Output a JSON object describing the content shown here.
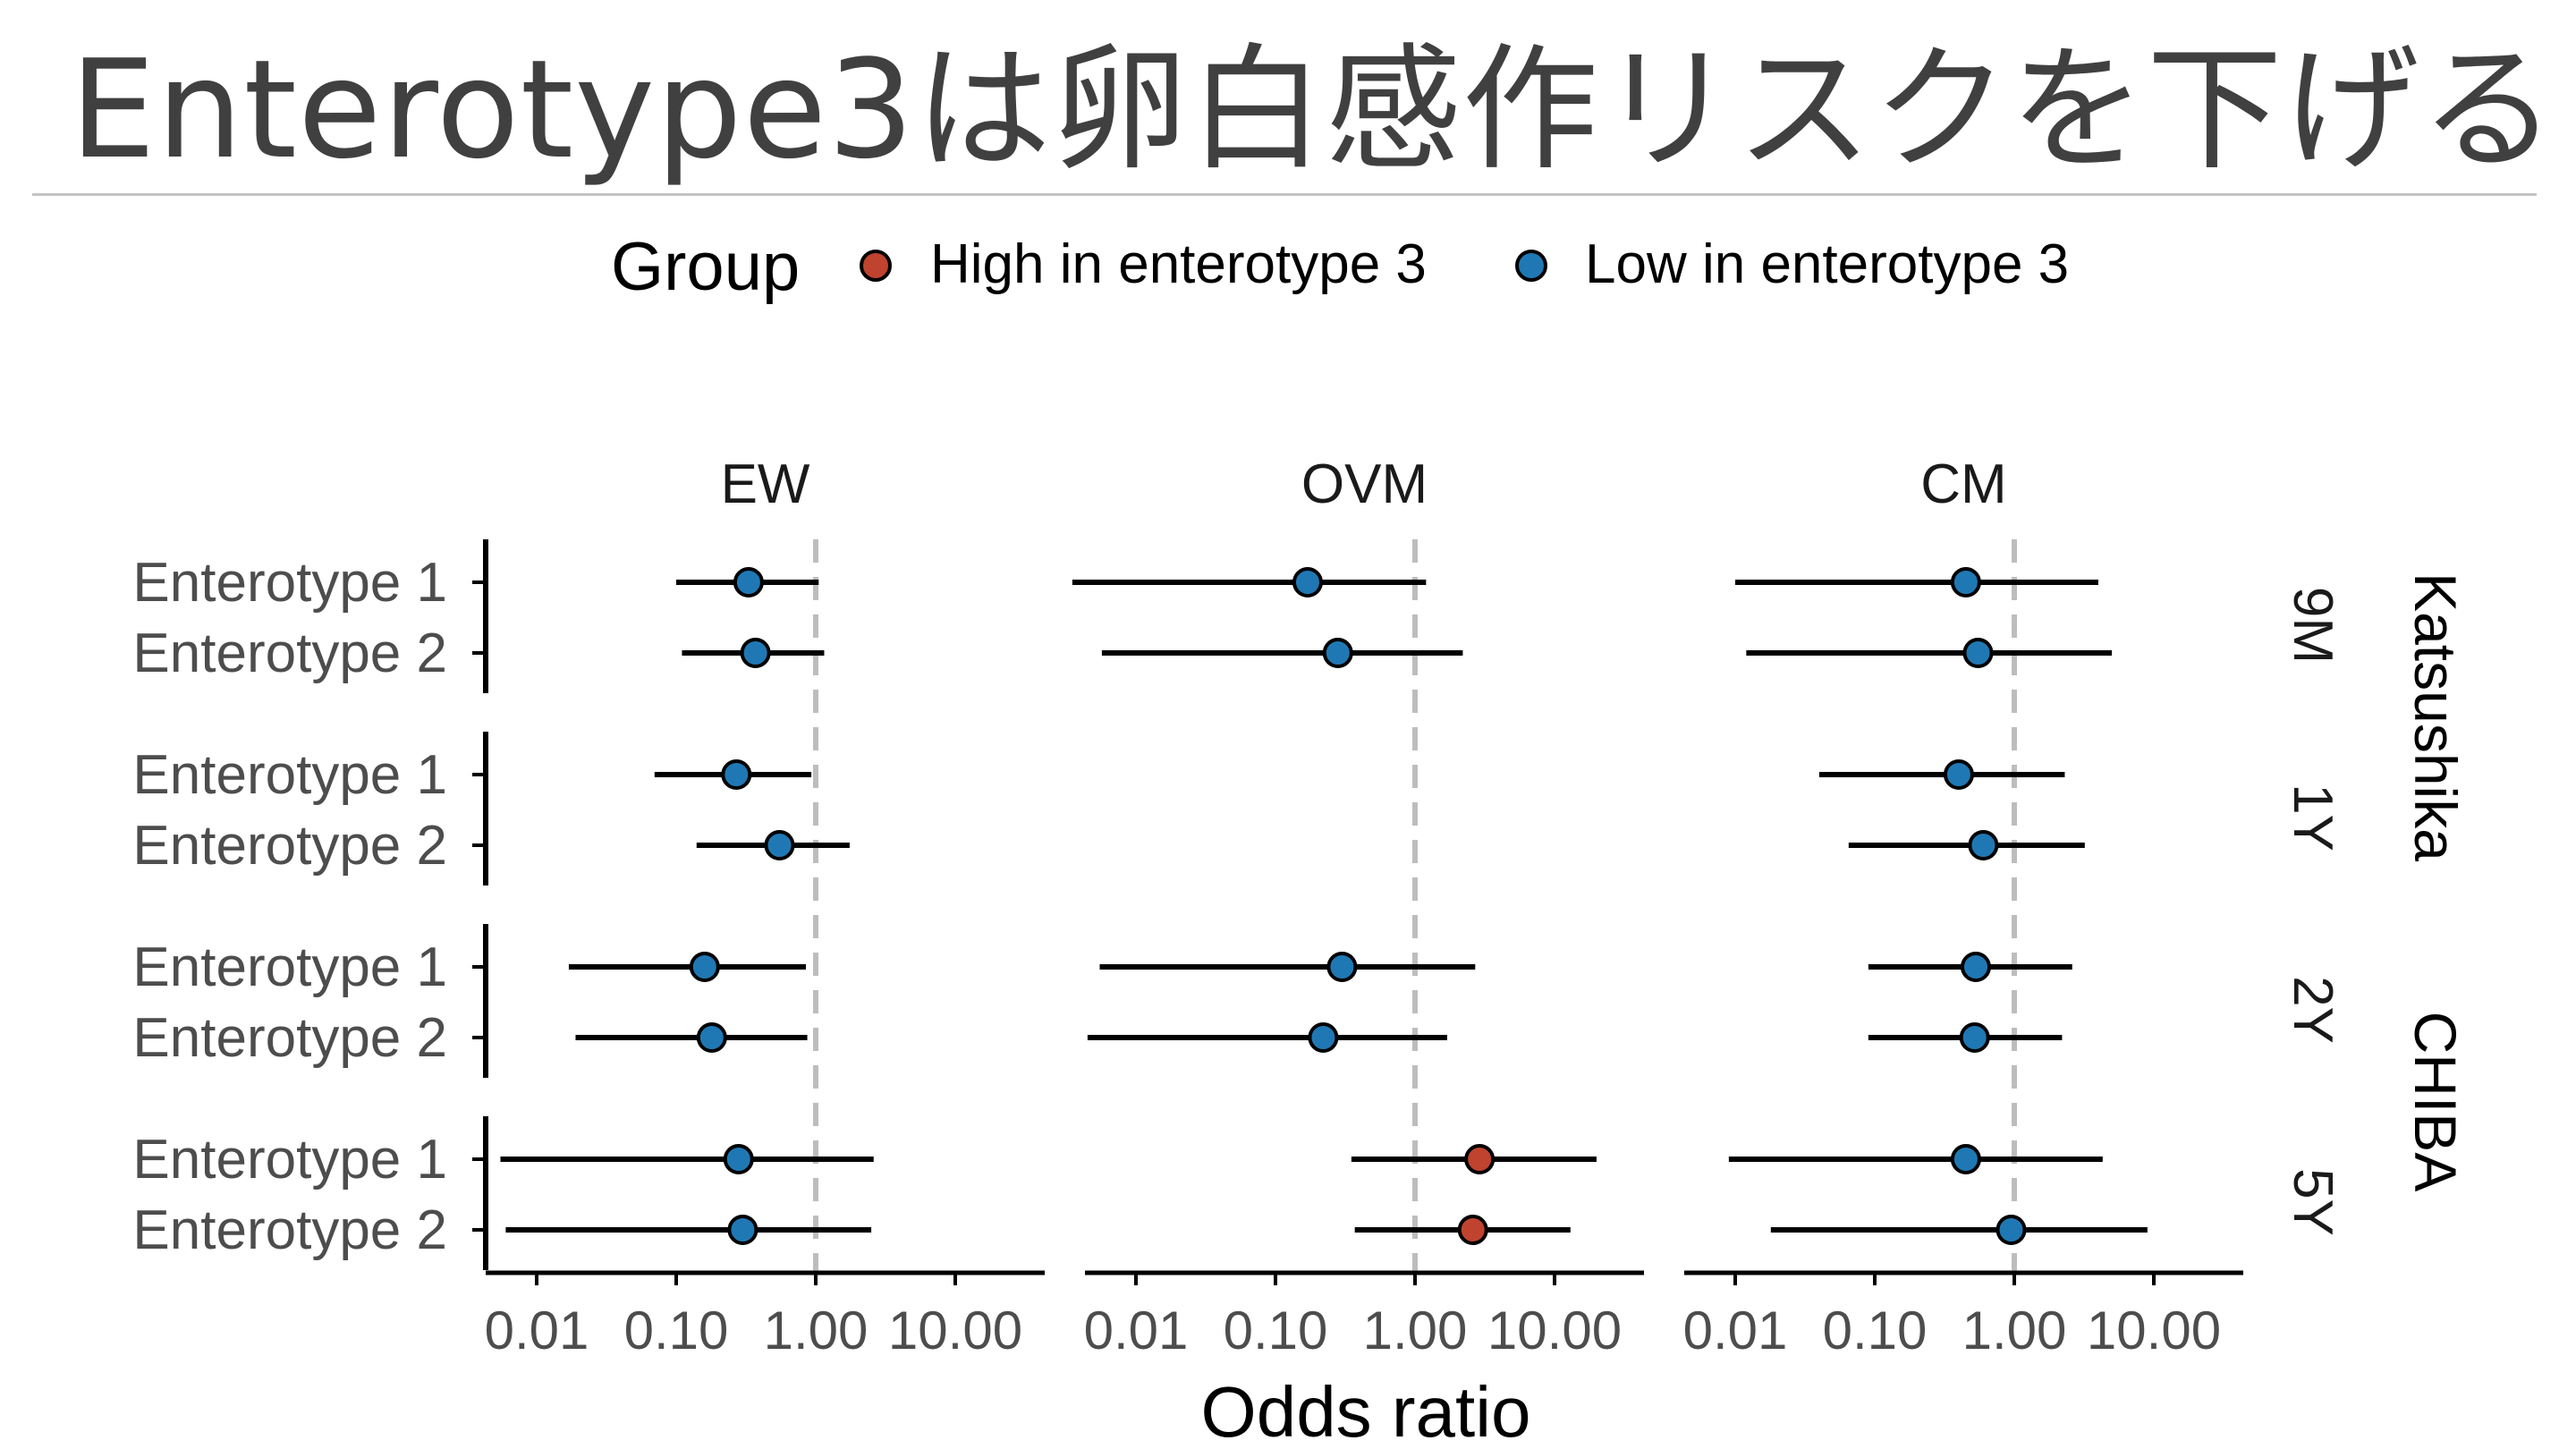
{
  "slide": {
    "title": "Enterotype3は卵白感作リスクを下げる"
  },
  "colors": {
    "high": "#c0432f",
    "low": "#1f78b4",
    "ref_line": "#bdbdbd",
    "text": "#4d4d4d"
  },
  "chart_data": {
    "type": "scatter",
    "subtype": "forest-plot",
    "x_scale": "log10",
    "xlabel": "Odds ratio",
    "x_ticks": [
      0.01,
      0.1,
      1,
      10
    ],
    "x_tick_labels": [
      "0.01",
      "0.10",
      "1.00",
      "10.00"
    ],
    "reference_line": 1,
    "legend": {
      "title": "Group",
      "position": "top",
      "entries": [
        {
          "key": "high",
          "label": "High in enterotype 3"
        },
        {
          "key": "low",
          "label": "Low in enterotype 3"
        }
      ]
    },
    "facet_columns": [
      "EW",
      "OVM",
      "CM"
    ],
    "facet_rows": [
      "9M",
      "1Y",
      "2Y",
      "5Y"
    ],
    "cohort_strips": [
      {
        "label": "Katsushika",
        "rows": [
          "9M",
          "1Y"
        ]
      },
      {
        "label": "CHIBA",
        "rows": [
          "2Y",
          "5Y"
        ]
      }
    ],
    "y_categories": [
      "Enterotype 1",
      "Enterotype 2"
    ],
    "points": [
      {
        "allergen": "EW",
        "age": "9M",
        "enterotype": "Enterotype 1",
        "or": 0.33,
        "lo": 0.1,
        "hi": 1.05,
        "group": "low"
      },
      {
        "allergen": "EW",
        "age": "9M",
        "enterotype": "Enterotype 2",
        "or": 0.37,
        "lo": 0.11,
        "hi": 1.15,
        "group": "low"
      },
      {
        "allergen": "EW",
        "age": "1Y",
        "enterotype": "Enterotype 1",
        "or": 0.27,
        "lo": 0.07,
        "hi": 0.93,
        "group": "low"
      },
      {
        "allergen": "EW",
        "age": "1Y",
        "enterotype": "Enterotype 2",
        "or": 0.55,
        "lo": 0.14,
        "hi": 1.75,
        "group": "low"
      },
      {
        "allergen": "EW",
        "age": "2Y",
        "enterotype": "Enterotype 1",
        "or": 0.16,
        "lo": 0.017,
        "hi": 0.85,
        "group": "low"
      },
      {
        "allergen": "EW",
        "age": "2Y",
        "enterotype": "Enterotype 2",
        "or": 0.18,
        "lo": 0.019,
        "hi": 0.87,
        "group": "low"
      },
      {
        "allergen": "EW",
        "age": "5Y",
        "enterotype": "Enterotype 1",
        "or": 0.28,
        "lo": 0.0055,
        "hi": 2.6,
        "group": "low"
      },
      {
        "allergen": "EW",
        "age": "5Y",
        "enterotype": "Enterotype 2",
        "or": 0.3,
        "lo": 0.006,
        "hi": 2.5,
        "group": "low"
      },
      {
        "allergen": "OVM",
        "age": "9M",
        "enterotype": "Enterotype 1",
        "or": 0.17,
        "lo": 0.0035,
        "hi": 1.2,
        "group": "low"
      },
      {
        "allergen": "OVM",
        "age": "9M",
        "enterotype": "Enterotype 2",
        "or": 0.28,
        "lo": 0.0057,
        "hi": 2.2,
        "group": "low"
      },
      {
        "allergen": "OVM",
        "age": "2Y",
        "enterotype": "Enterotype 1",
        "or": 0.3,
        "lo": 0.0055,
        "hi": 2.7,
        "group": "low"
      },
      {
        "allergen": "OVM",
        "age": "2Y",
        "enterotype": "Enterotype 2",
        "or": 0.22,
        "lo": 0.0045,
        "hi": 1.7,
        "group": "low"
      },
      {
        "allergen": "OVM",
        "age": "5Y",
        "enterotype": "Enterotype 1",
        "or": 2.9,
        "lo": 0.35,
        "hi": 20.0,
        "group": "high"
      },
      {
        "allergen": "OVM",
        "age": "5Y",
        "enterotype": "Enterotype 2",
        "or": 2.6,
        "lo": 0.37,
        "hi": 13.0,
        "group": "high"
      },
      {
        "allergen": "CM",
        "age": "9M",
        "enterotype": "Enterotype 1",
        "or": 0.45,
        "lo": 0.01,
        "hi": 4.0,
        "group": "low"
      },
      {
        "allergen": "CM",
        "age": "9M",
        "enterotype": "Enterotype 2",
        "or": 0.55,
        "lo": 0.012,
        "hi": 5.0,
        "group": "low"
      },
      {
        "allergen": "CM",
        "age": "1Y",
        "enterotype": "Enterotype 1",
        "or": 0.4,
        "lo": 0.04,
        "hi": 2.3,
        "group": "low"
      },
      {
        "allergen": "CM",
        "age": "1Y",
        "enterotype": "Enterotype 2",
        "or": 0.6,
        "lo": 0.065,
        "hi": 3.2,
        "group": "low"
      },
      {
        "allergen": "CM",
        "age": "2Y",
        "enterotype": "Enterotype 1",
        "or": 0.53,
        "lo": 0.09,
        "hi": 2.6,
        "group": "low"
      },
      {
        "allergen": "CM",
        "age": "2Y",
        "enterotype": "Enterotype 2",
        "or": 0.52,
        "lo": 0.09,
        "hi": 2.2,
        "group": "low"
      },
      {
        "allergen": "CM",
        "age": "5Y",
        "enterotype": "Enterotype 1",
        "or": 0.45,
        "lo": 0.009,
        "hi": 4.3,
        "group": "low"
      },
      {
        "allergen": "CM",
        "age": "5Y",
        "enterotype": "Enterotype 2",
        "or": 0.95,
        "lo": 0.018,
        "hi": 9.0,
        "group": "low"
      }
    ]
  }
}
